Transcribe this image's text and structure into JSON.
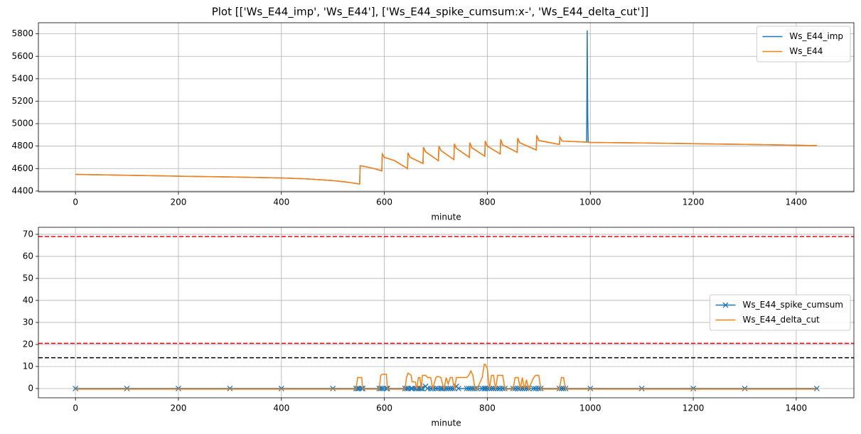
{
  "title": "Plot [['Ws_E44_imp', 'Ws_E44'], ['Ws_E44_spike_cumsum:x-', 'Ws_E44_delta_cut']]",
  "chart_data": [
    {
      "type": "line",
      "xlabel": "minute",
      "grid": true,
      "legend": "upper right",
      "xlim": [
        -72,
        1512
      ],
      "ylim": [
        4393,
        5899
      ],
      "xticks": [
        0,
        200,
        400,
        600,
        800,
        1000,
        1200,
        1400
      ],
      "yticks": [
        4400,
        4600,
        4800,
        5000,
        5200,
        5400,
        5600,
        5800
      ],
      "x": [
        0,
        100,
        200,
        300,
        400,
        450,
        500,
        530,
        552,
        553,
        560,
        580,
        595,
        596,
        600,
        620,
        645,
        646,
        650,
        675,
        676,
        680,
        705,
        706,
        710,
        735,
        736,
        740,
        765,
        766,
        770,
        795,
        796,
        800,
        825,
        826,
        830,
        858,
        859,
        863,
        895,
        896,
        900,
        940,
        941,
        945,
        993,
        994,
        995,
        996,
        1000,
        1100,
        1200,
        1300,
        1440
      ],
      "series": [
        {
          "name": "Ws_E44_imp",
          "color": "#1f77b4",
          "values": [
            4548,
            4540,
            4532,
            4525,
            4516,
            4508,
            4493,
            4478,
            4462,
            4625,
            4620,
            4600,
            4580,
            4730,
            4700,
            4670,
            4600,
            4740,
            4700,
            4645,
            4790,
            4750,
            4670,
            4800,
            4760,
            4680,
            4820,
            4780,
            4700,
            4830,
            4785,
            4710,
            4845,
            4800,
            4730,
            4860,
            4810,
            4745,
            4870,
            4830,
            4765,
            4895,
            4850,
            4815,
            4880,
            4845,
            4835,
            5830,
            5070,
            4834,
            4833,
            4828,
            4822,
            4815,
            4805
          ]
        },
        {
          "name": "Ws_E44",
          "color": "#ff7f0e",
          "values": [
            4548,
            4540,
            4532,
            4525,
            4516,
            4508,
            4493,
            4478,
            4462,
            4625,
            4620,
            4600,
            4580,
            4730,
            4700,
            4670,
            4600,
            4740,
            4700,
            4645,
            4790,
            4750,
            4670,
            4800,
            4760,
            4680,
            4820,
            4780,
            4700,
            4830,
            4785,
            4710,
            4845,
            4800,
            4730,
            4860,
            4810,
            4745,
            4870,
            4830,
            4765,
            4895,
            4850,
            4815,
            4880,
            4845,
            4835,
            4835,
            4834,
            4834,
            4833,
            4828,
            4822,
            4815,
            4805
          ]
        }
      ]
    },
    {
      "type": "line",
      "xlabel": "minute",
      "grid": true,
      "legend": "center right",
      "xlim": [
        -72,
        1512
      ],
      "ylim": [
        -4.2,
        73.2
      ],
      "xticks": [
        0,
        200,
        400,
        600,
        800,
        1000,
        1200,
        1400
      ],
      "yticks": [
        0,
        10,
        20,
        30,
        40,
        50,
        60,
        70
      ],
      "hlines": [
        {
          "value": 69,
          "color": "red"
        },
        {
          "value": 20.5,
          "color": "red"
        },
        {
          "value": 14,
          "color": "black"
        }
      ],
      "x": [
        0,
        100,
        200,
        300,
        400,
        500,
        545,
        548,
        550,
        556,
        558,
        590,
        593,
        596,
        604,
        606,
        640,
        643,
        646,
        652,
        654,
        660,
        663,
        666,
        669,
        672,
        674,
        680,
        684,
        690,
        694,
        700,
        704,
        710,
        713,
        716,
        720,
        724,
        728,
        732,
        736,
        740,
        744,
        760,
        764,
        768,
        772,
        776,
        780,
        790,
        794,
        796,
        800,
        804,
        808,
        812,
        816,
        820,
        824,
        830,
        834,
        850,
        854,
        860,
        864,
        868,
        872,
        876,
        880,
        890,
        894,
        900,
        904,
        940,
        944,
        948,
        952,
        1000,
        1100,
        1200,
        1300,
        1440
      ],
      "series": [
        {
          "name": "Ws_E44_spike_cumsum",
          "color": "#1f77b4",
          "marker": "x",
          "values": [
            0,
            0,
            0,
            0,
            0,
            0,
            0,
            0,
            0,
            0,
            0,
            0,
            0,
            0,
            0,
            0,
            0,
            0,
            0,
            0,
            0,
            0,
            0,
            0,
            0,
            0,
            0,
            1,
            0,
            0,
            0,
            0,
            0,
            0,
            0,
            0,
            0,
            0,
            0,
            0,
            0,
            1,
            0,
            0,
            0,
            0,
            0,
            0,
            0,
            0,
            0,
            0,
            0,
            0,
            0,
            0,
            0,
            0,
            0,
            0,
            0,
            0,
            0,
            0,
            0,
            0,
            0,
            0,
            0,
            0,
            0,
            0,
            0,
            0,
            0,
            0,
            0,
            0,
            0,
            0,
            0,
            0
          ]
        },
        {
          "name": "Ws_E44_delta_cut",
          "color": "#ff7f0e",
          "values": [
            -0.3,
            -0.3,
            -0.3,
            -0.3,
            -0.3,
            -0.3,
            -0.3,
            5,
            5,
            5,
            -0.3,
            -0.3,
            6,
            6.5,
            6.5,
            -0.3,
            -0.3,
            5,
            7,
            6,
            3,
            3,
            -0.3,
            5,
            5,
            -0.3,
            6,
            6,
            5,
            5,
            -0.3,
            5,
            5.5,
            5,
            2,
            -0.3,
            5,
            2,
            5,
            5,
            -0.3,
            5,
            5,
            5,
            6,
            8,
            6,
            -0.3,
            -0.3,
            5,
            11,
            11,
            9,
            -0.3,
            6,
            6,
            -0.3,
            6,
            6,
            6,
            -0.3,
            -0.3,
            5,
            5,
            -0.3,
            5,
            -0.3,
            4,
            -0.3,
            5,
            6,
            6,
            -0.3,
            -0.3,
            5,
            5,
            -0.3,
            -0.3,
            -0.3,
            -0.3,
            -0.3,
            -0.3
          ]
        }
      ]
    }
  ]
}
